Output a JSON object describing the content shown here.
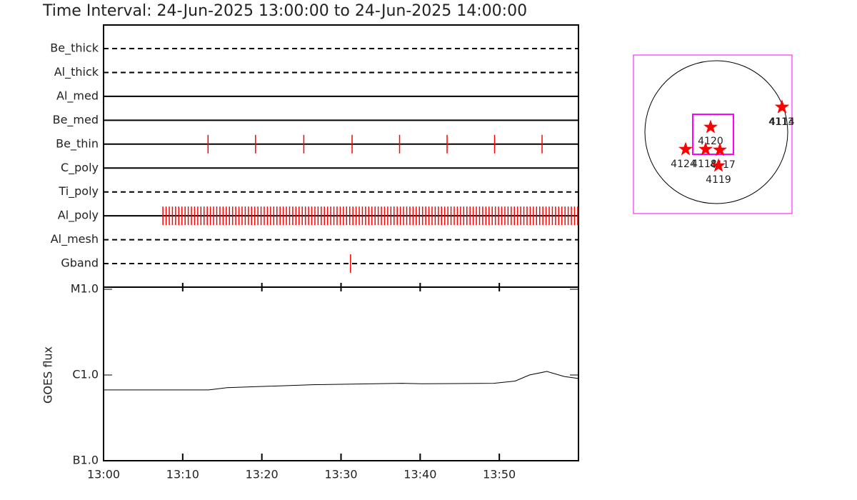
{
  "chart_data": [
    {
      "type": "event",
      "title": "Time Interval: 24-Jun-2025 13:00:00 to 24-Jun-2025 14:00:00",
      "xlim": [
        0,
        60
      ],
      "color": "#ff0000",
      "rows": [
        {
          "name": "Be_thick",
          "line_style": "dashed",
          "values": []
        },
        {
          "name": "Al_thick",
          "line_style": "dashed",
          "values": []
        },
        {
          "name": "Al_med",
          "line_style": "solid",
          "values": []
        },
        {
          "name": "Be_med",
          "line_style": "solid",
          "values": []
        },
        {
          "name": "Be_thin",
          "line_style": "solid",
          "values": [
            13.2,
            19.2,
            25.3,
            31.4,
            37.4,
            43.4,
            49.4,
            55.4
          ]
        },
        {
          "name": "C_poly",
          "line_style": "solid",
          "values": []
        },
        {
          "name": "Ti_poly",
          "line_style": "dashed",
          "values": []
        },
        {
          "name": "Al_poly",
          "line_style": "solid",
          "values": [
            7.5,
            7.9,
            8.3,
            8.7,
            9.1,
            9.5,
            9.9,
            10.3,
            10.7,
            11.1,
            11.5,
            11.9,
            12.3,
            12.7,
            13.1,
            13.5,
            13.9,
            14.3,
            14.7,
            15.1,
            15.5,
            15.9,
            16.3,
            16.7,
            17.1,
            17.5,
            17.9,
            18.3,
            18.7,
            19.1,
            19.5,
            19.9,
            20.3,
            20.7,
            21.1,
            21.5,
            21.9,
            22.3,
            22.7,
            23.1,
            23.5,
            23.9,
            24.3,
            24.7,
            25.1,
            25.5,
            25.9,
            26.3,
            26.7,
            27.1,
            27.5,
            27.9,
            28.3,
            28.7,
            29.1,
            29.5,
            29.9,
            30.3,
            30.7,
            31.1,
            31.5,
            31.9,
            32.3,
            32.7,
            33.1,
            33.5,
            33.9,
            34.3,
            34.7,
            35.1,
            35.5,
            35.9,
            36.3,
            36.7,
            37.1,
            37.5,
            37.9,
            38.3,
            38.7,
            39.1,
            39.5,
            39.9,
            40.3,
            40.7,
            41.1,
            41.5,
            41.9,
            42.3,
            42.7,
            43.1,
            43.5,
            43.9,
            44.3,
            44.7,
            45.1,
            45.5,
            45.9,
            46.3,
            46.7,
            47.1,
            47.5,
            47.9,
            48.3,
            48.7,
            49.1,
            49.5,
            49.9,
            50.3,
            50.7,
            51.1,
            51.5,
            51.9,
            52.3,
            52.7,
            53.1,
            53.5,
            53.9,
            54.3,
            54.7,
            55.1,
            55.5,
            55.9,
            56.3,
            56.7,
            57.1,
            57.5,
            57.9,
            58.3,
            58.7,
            59.1,
            59.5,
            59.9
          ]
        },
        {
          "name": "Al_mesh",
          "line_style": "dashed",
          "values": []
        },
        {
          "name": "Gband",
          "line_style": "dashed",
          "values": [
            31.2
          ]
        }
      ]
    },
    {
      "type": "line",
      "ylabel": "GOES flux",
      "color": "#000000",
      "log_y": true,
      "x": [
        0,
        13.3,
        15.6,
        26.4,
        37.7,
        40.2,
        49.3,
        52,
        53.8,
        56,
        58.2,
        60
      ],
      "values": [
        6.7e-07,
        6.7e-07,
        7.1e-07,
        7.7e-07,
        8e-07,
        7.9e-07,
        8e-07,
        8.5e-07,
        1e-06,
        1.1e-06,
        9.6e-07,
        9.1e-07
      ],
      "xlim": [
        0,
        60
      ],
      "xticks": [
        {
          "value": 0,
          "label": "13:00"
        },
        {
          "value": 10,
          "label": "13:10"
        },
        {
          "value": 20,
          "label": "13:20"
        },
        {
          "value": 30,
          "label": "13:30"
        },
        {
          "value": 40,
          "label": "13:40"
        },
        {
          "value": 50,
          "label": "13:50"
        }
      ],
      "ylim": [
        1e-07,
        1e-05
      ],
      "yticks": [
        {
          "value": 1e-07,
          "label": "B1.0"
        },
        {
          "value": 1e-06,
          "label": "C1.0"
        },
        {
          "value": 1e-05,
          "label": "M1.0"
        }
      ]
    }
  ],
  "map": {
    "color": "#ff0000",
    "box_color": "#ff00ff",
    "regions": [
      {
        "label": "4120"
      },
      {
        "label": "4124"
      },
      {
        "label": "4118"
      },
      {
        "label": "4117"
      },
      {
        "label": "4119"
      },
      {
        "label": "4113"
      },
      {
        "label": "4114"
      }
    ]
  }
}
